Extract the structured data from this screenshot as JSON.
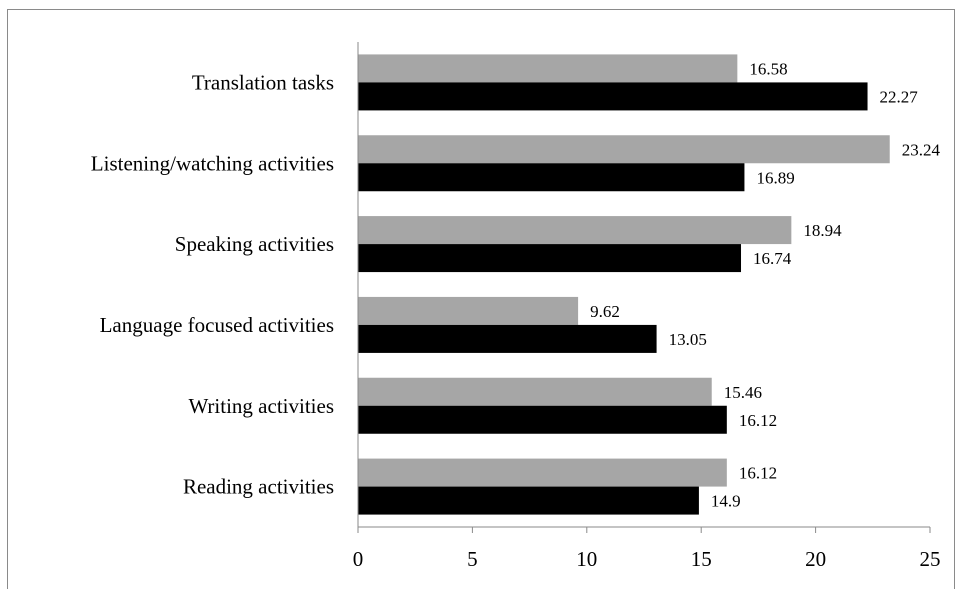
{
  "chart_data": {
    "type": "bar",
    "orientation": "horizontal",
    "categories": [
      "Translation tasks",
      "Listening/watching activities",
      "Speaking activities",
      "Language focused activities",
      "Writing activities",
      "Reading activities"
    ],
    "series": [
      {
        "color": "#a6a6a6",
        "values": [
          16.58,
          23.24,
          18.94,
          9.62,
          15.46,
          16.12
        ]
      },
      {
        "color": "#000000",
        "values": [
          22.27,
          16.89,
          16.74,
          13.05,
          16.12,
          14.9
        ]
      }
    ],
    "data_labels": [
      [
        "16.58",
        "23.24",
        "18.94",
        "9.62",
        "15.46",
        "16.12"
      ],
      [
        "22.27",
        "16.89",
        "16.74",
        "13.05",
        "16.12",
        "14.9"
      ]
    ],
    "xticks": [
      "0",
      "5",
      "10",
      "15",
      "20",
      "25"
    ],
    "xlim": [
      0,
      25
    ],
    "title": "",
    "xlabel": "",
    "ylabel": "",
    "grid": false,
    "legend": "none"
  }
}
